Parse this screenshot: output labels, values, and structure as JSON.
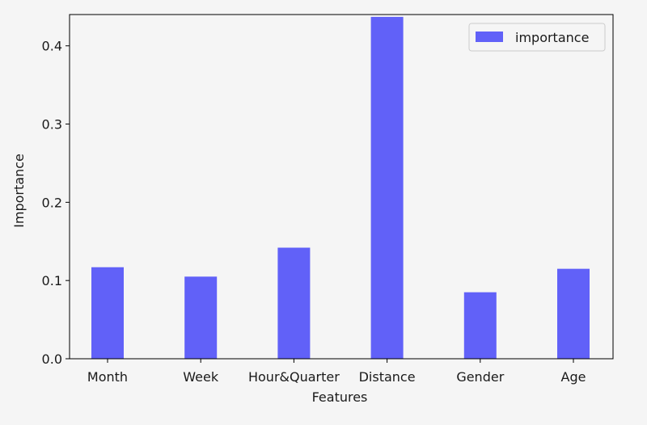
{
  "chart_data": {
    "type": "bar",
    "categories": [
      "Month",
      "Week",
      "Hour&Quarter",
      "Distance",
      "Gender",
      "Age"
    ],
    "series": [
      {
        "name": "importance",
        "values": [
          0.117,
          0.105,
          0.142,
          0.437,
          0.085,
          0.115
        ]
      }
    ],
    "title": "",
    "xlabel": "Features",
    "ylabel": "Importance",
    "ylim": [
      0,
      0.44
    ],
    "yticks": [
      0.0,
      0.1,
      0.2,
      0.3,
      0.4
    ],
    "ytick_labels": [
      "0.0",
      "0.1",
      "0.2",
      "0.3",
      "0.4"
    ],
    "grid": false,
    "legend_position": "top-right",
    "bar_color": "#6161f8"
  }
}
